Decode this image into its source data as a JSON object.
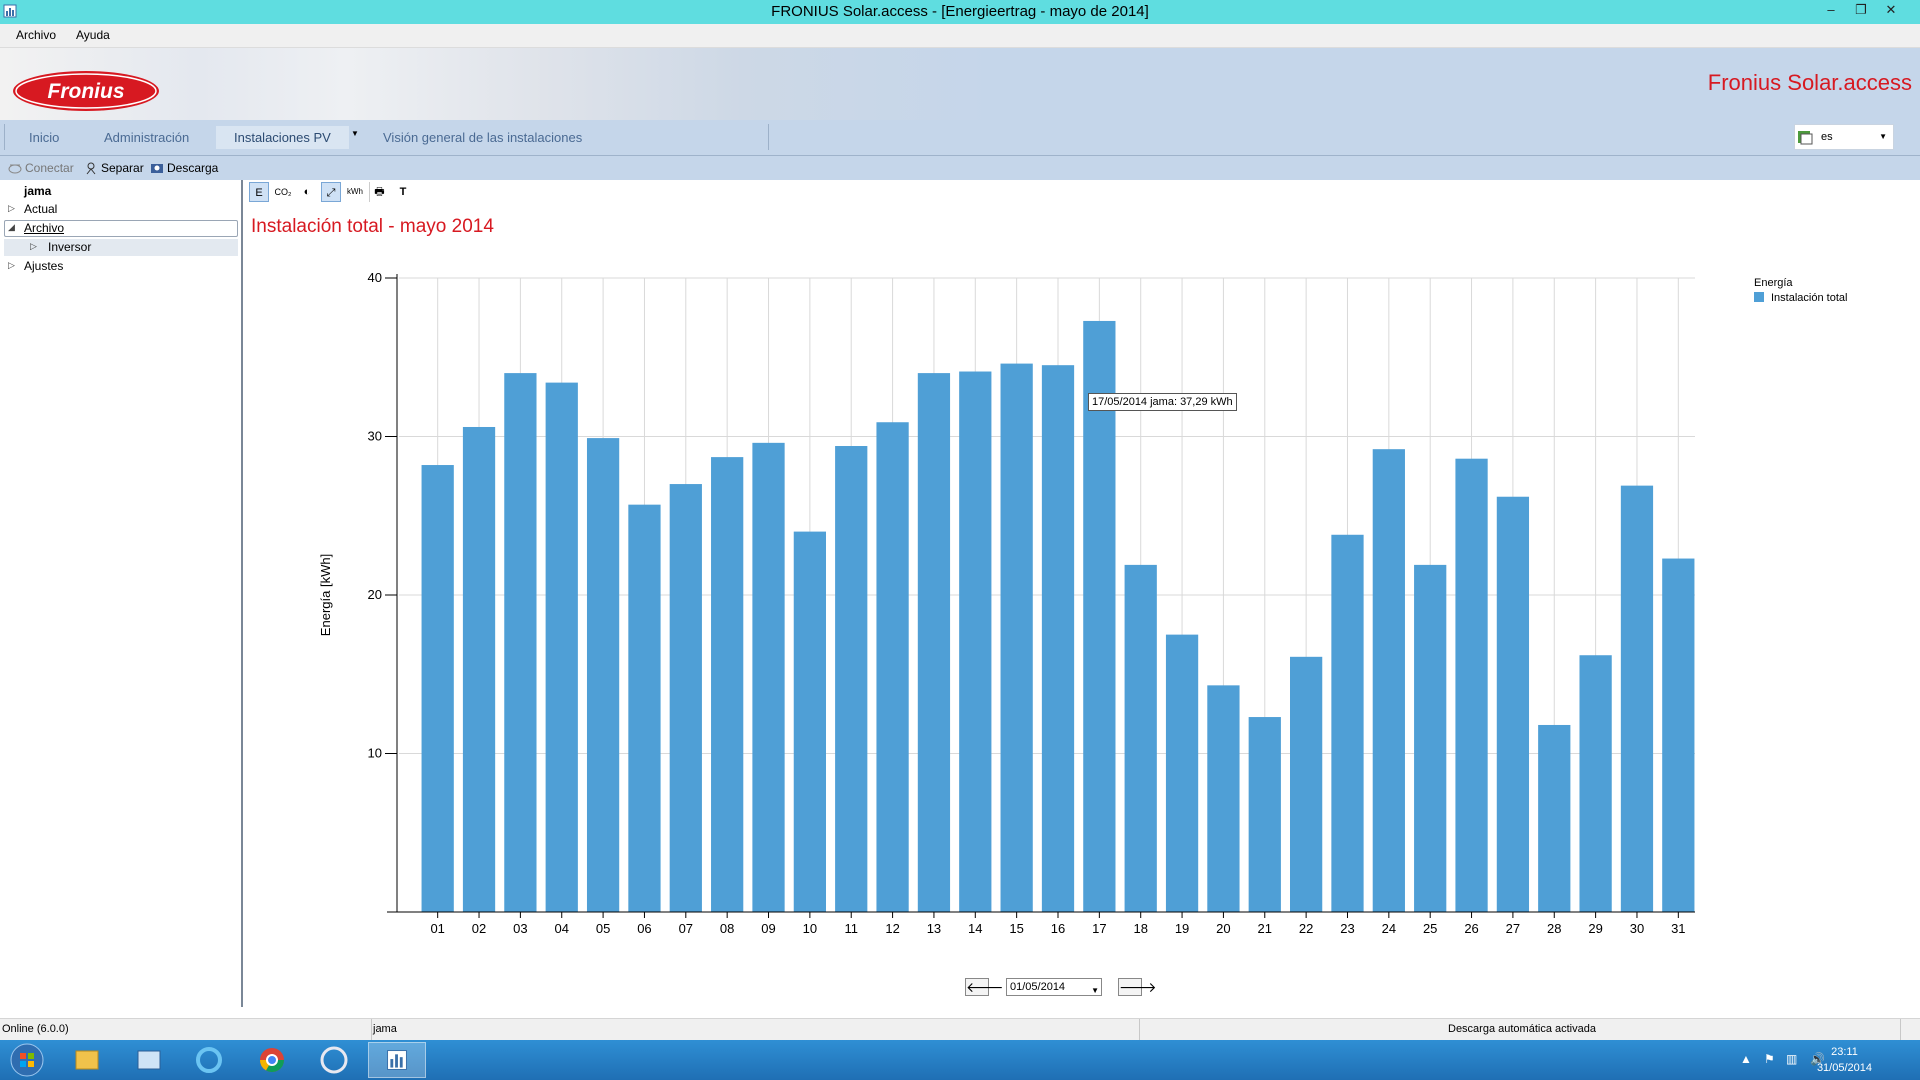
{
  "window": {
    "title": "FRONIUS Solar.access - [Energieertrag - mayo de 2014]",
    "minimize": "–",
    "restore": "❐",
    "close": "✕"
  },
  "menu": {
    "items": [
      "Archivo",
      "Ayuda"
    ]
  },
  "banner": {
    "brand": "Fronius Solar.access",
    "logo_text": "Fronius"
  },
  "nav": {
    "items": [
      "Inicio",
      "Administración",
      "Instalaciones PV",
      "Visión general de las instalaciones"
    ],
    "active_index": 2,
    "language": "es"
  },
  "toolbar": {
    "connect": "Conectar",
    "separate": "Separar",
    "download": "Descarga"
  },
  "tree": {
    "root": "jama",
    "items": [
      "Actual",
      "Archivo",
      "Inversor",
      "Ajustes"
    ]
  },
  "chart_tools": [
    "E",
    "CO₂",
    "◐",
    "⤢",
    "kWh",
    "🖶",
    "T"
  ],
  "chart_title": "Instalación total - mayo 2014",
  "tooltip": "17/05/2014 jama: 37,29 kWh",
  "legend": {
    "title": "Energía",
    "item": "Instalación total"
  },
  "colors": {
    "bar": "#4f9fd6",
    "title_red": "#d71921",
    "titlebar": "#5fdde0",
    "banner": "#c5d6ea"
  },
  "date_nav": {
    "prev": "🡐",
    "next": "🡒",
    "date": "01/05/2014"
  },
  "status": {
    "online": "Online (6.0.0)",
    "installation": "jama",
    "auto": "Descarga automática activada"
  },
  "taskbar": {
    "time": "23:11",
    "date": "31/05/2014"
  },
  "chart_data": {
    "type": "bar",
    "ylabel": "Energía [kWh]",
    "ylim": [
      0,
      40
    ],
    "yticks": [
      10,
      20,
      30,
      40
    ],
    "grid": true,
    "legend_position": "top-right",
    "categories": [
      "01",
      "02",
      "03",
      "04",
      "05",
      "06",
      "07",
      "08",
      "09",
      "10",
      "11",
      "12",
      "13",
      "14",
      "15",
      "16",
      "17",
      "18",
      "19",
      "20",
      "21",
      "22",
      "23",
      "24",
      "25",
      "26",
      "27",
      "28",
      "29",
      "30",
      "31"
    ],
    "series": [
      {
        "name": "Instalación total",
        "values": [
          28.2,
          30.6,
          34.0,
          33.4,
          29.9,
          25.7,
          27.0,
          28.7,
          29.6,
          24.0,
          29.4,
          30.9,
          34.0,
          34.1,
          34.6,
          34.5,
          37.29,
          21.9,
          17.5,
          14.3,
          12.3,
          16.1,
          23.8,
          29.2,
          21.9,
          28.6,
          26.2,
          11.8,
          16.2,
          26.9,
          22.3
        ]
      }
    ]
  }
}
